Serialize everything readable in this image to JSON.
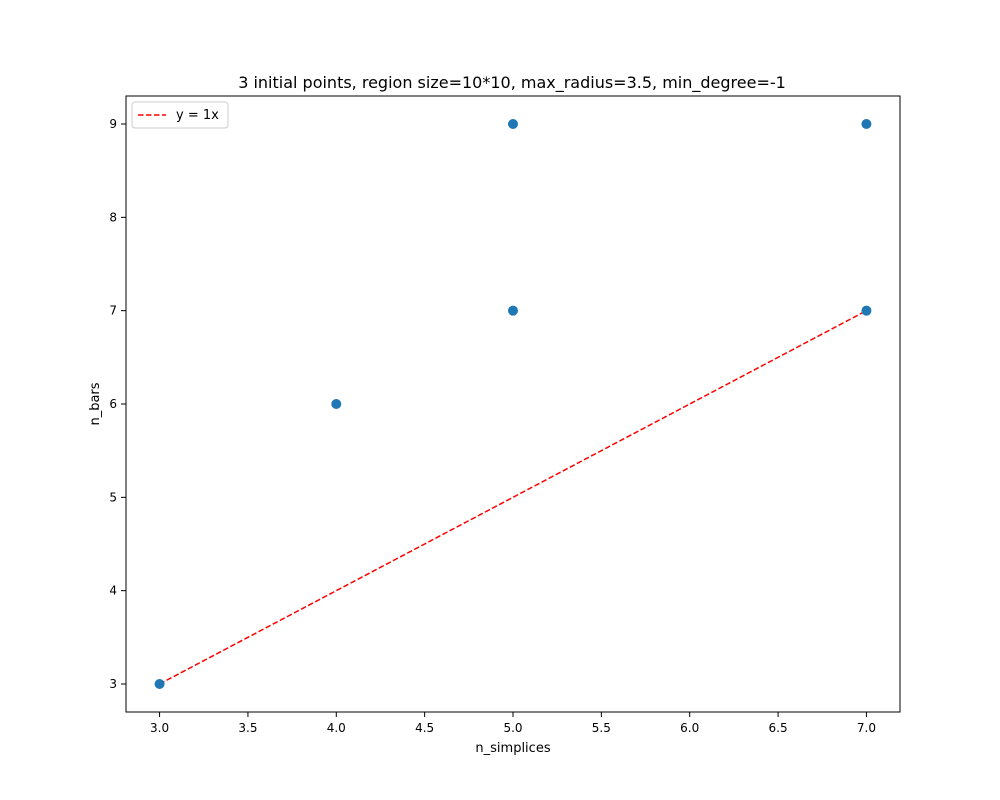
{
  "chart_data": {
    "type": "scatter",
    "title": "3 initial points, region size=10*10, max_radius=3.5, min_degree=-1",
    "xlabel": "n_simplices",
    "ylabel": "n_bars",
    "xlim": [
      2.81,
      7.19
    ],
    "ylim": [
      2.7,
      9.3
    ],
    "xticks": [
      3.0,
      3.5,
      4.0,
      4.5,
      5.0,
      5.5,
      6.0,
      6.5,
      7.0
    ],
    "xtick_labels": [
      "3.0",
      "3.5",
      "4.0",
      "4.5",
      "5.0",
      "5.5",
      "6.0",
      "6.5",
      "7.0"
    ],
    "yticks": [
      3,
      4,
      5,
      6,
      7,
      8,
      9
    ],
    "ytick_labels": [
      "3",
      "4",
      "5",
      "6",
      "7",
      "8",
      "9"
    ],
    "grid": false,
    "legend": {
      "position": "top-left",
      "entries": [
        "y = 1x"
      ]
    },
    "series": [
      {
        "kind": "scatter",
        "color": "#1f77b4",
        "points": [
          {
            "x": 3,
            "y": 3
          },
          {
            "x": 4,
            "y": 6
          },
          {
            "x": 5,
            "y": 7
          },
          {
            "x": 5,
            "y": 9
          },
          {
            "x": 7,
            "y": 7
          },
          {
            "x": 7,
            "y": 9
          }
        ]
      },
      {
        "kind": "line",
        "name": "y = 1x",
        "style": "dashed",
        "color": "#ff0000",
        "x": [
          3,
          7
        ],
        "y": [
          3,
          7
        ]
      }
    ]
  }
}
